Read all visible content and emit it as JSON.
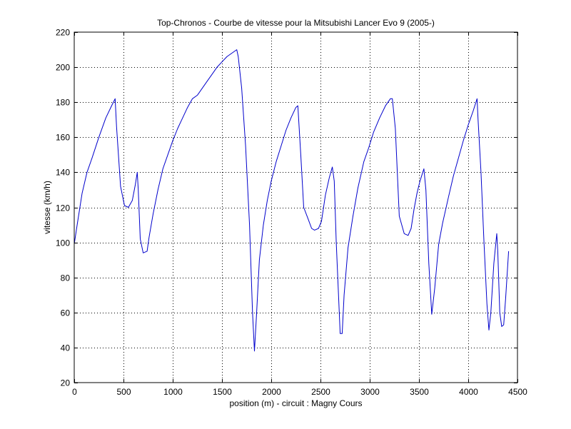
{
  "chart_data": {
    "type": "line",
    "title": "Top-Chronos - Courbe de vitesse pour la Mitsubishi Lancer Evo 9 (2005-)",
    "xlabel": "position (m) - circuit : Magny Cours",
    "ylabel": "vitesse (km/h)",
    "xlim": [
      0,
      4500
    ],
    "ylim": [
      20,
      220
    ],
    "xticks": [
      0,
      500,
      1000,
      1500,
      2000,
      2500,
      3000,
      3500,
      4000,
      4500
    ],
    "yticks": [
      20,
      40,
      60,
      80,
      100,
      120,
      140,
      160,
      180,
      200,
      220
    ],
    "grid": true,
    "line_color": "#0000cc",
    "series": [
      {
        "x": [
          0,
          30,
          80,
          130,
          180,
          250,
          320,
          380,
          415,
          430,
          470,
          510,
          550,
          590,
          620,
          640,
          650,
          670,
          700,
          740,
          760,
          800,
          850,
          900,
          950,
          1000,
          1050,
          1100,
          1150,
          1200,
          1250,
          1300,
          1350,
          1400,
          1450,
          1500,
          1550,
          1600,
          1650,
          1665,
          1700,
          1740,
          1780,
          1810,
          1830,
          1850,
          1880,
          1920,
          1960,
          2000,
          2050,
          2100,
          2150,
          2200,
          2250,
          2270,
          2300,
          2330,
          2370,
          2410,
          2440,
          2480,
          2510,
          2550,
          2590,
          2620,
          2640,
          2660,
          2700,
          2720,
          2740,
          2780,
          2830,
          2880,
          2940,
          2990,
          3040,
          3100,
          3160,
          3210,
          3230,
          3260,
          3300,
          3350,
          3390,
          3420,
          3450,
          3480,
          3510,
          3550,
          3570,
          3600,
          3630,
          3660,
          3700,
          3740,
          3800,
          3850,
          3900,
          3950,
          4000,
          4050,
          4090,
          4100,
          4130,
          4160,
          4190,
          4210,
          4230,
          4260,
          4290,
          4300,
          4320,
          4340,
          4360,
          4380,
          4400,
          4410
        ],
        "y": [
          99,
          110,
          128,
          140,
          148,
          160,
          171,
          178,
          182,
          166,
          132,
          121,
          120,
          124,
          133,
          140,
          130,
          102,
          94,
          95,
          103,
          116,
          130,
          142,
          150,
          158,
          165,
          171,
          177,
          182,
          184,
          188,
          192,
          196,
          200,
          203,
          206,
          208,
          210,
          206,
          188,
          155,
          110,
          60,
          38,
          58,
          90,
          110,
          124,
          135,
          146,
          155,
          164,
          171,
          177,
          178,
          150,
          120,
          114,
          108,
          107,
          108,
          112,
          127,
          137,
          143,
          135,
          100,
          48,
          48,
          70,
          97,
          115,
          131,
          146,
          154,
          163,
          171,
          178,
          182,
          182,
          165,
          115,
          105,
          104,
          108,
          119,
          128,
          135,
          142,
          130,
          88,
          59,
          74,
          99,
          111,
          126,
          138,
          148,
          158,
          167,
          175,
          182,
          170,
          140,
          100,
          65,
          50,
          60,
          88,
          105,
          95,
          60,
          52,
          53,
          68,
          86,
          95
        ]
      }
    ]
  }
}
